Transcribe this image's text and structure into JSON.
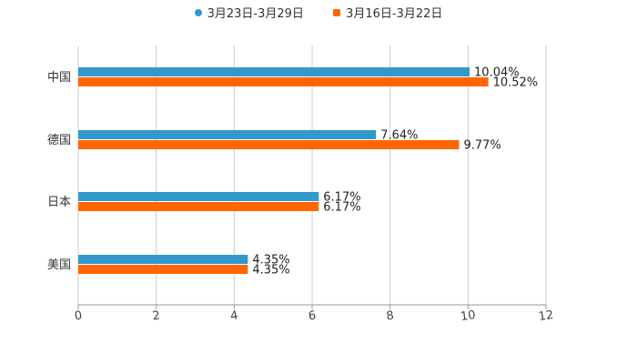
{
  "chart_data": {
    "type": "bar",
    "orientation": "horizontal",
    "categories": [
      "中国",
      "德国",
      "日本",
      "美国"
    ],
    "series": [
      {
        "name": "3月23日-3月29日",
        "color": "#3399cc",
        "values": [
          10.04,
          7.64,
          6.17,
          4.35
        ],
        "labels": [
          "10.04%",
          "7.64%",
          "6.17%",
          "4.35%"
        ]
      },
      {
        "name": "3月16日-3月22日",
        "color": "#ff6600",
        "values": [
          10.52,
          9.77,
          6.17,
          4.35
        ],
        "labels": [
          "10.52%",
          "9.77%",
          "6.17%",
          "4.35%"
        ]
      }
    ],
    "xlim": [
      0,
      12
    ],
    "xticks": [
      "0",
      "2",
      "4",
      "6",
      "8",
      "10",
      "12"
    ],
    "grid": true,
    "legend_position": "top-center",
    "title": "",
    "xlabel": "",
    "ylabel": ""
  }
}
